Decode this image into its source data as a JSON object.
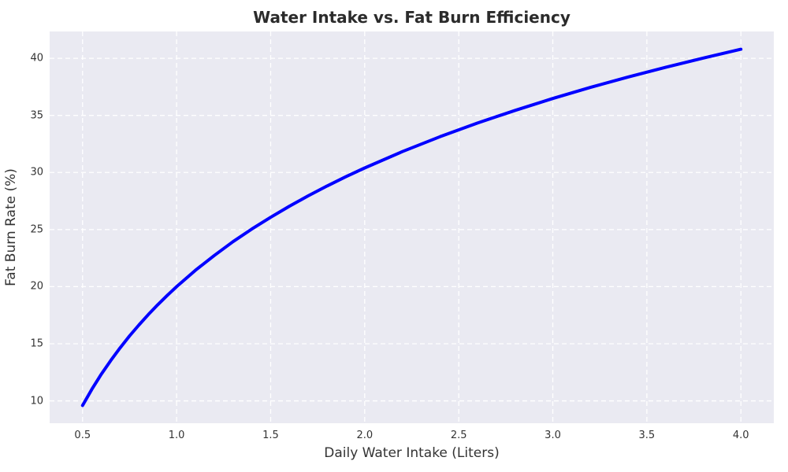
{
  "chart_data": {
    "type": "line",
    "title": "Water Intake vs. Fat Burn Efficiency",
    "xlabel": "Daily Water Intake (Liters)",
    "ylabel": "Fat Burn Rate (%)",
    "x": [
      0.5,
      0.55,
      0.6,
      0.65,
      0.7,
      0.75,
      0.8,
      0.85,
      0.9,
      0.95,
      1.0,
      1.1,
      1.2,
      1.3,
      1.4,
      1.5,
      1.6,
      1.7,
      1.8,
      1.9,
      2.0,
      2.2,
      2.4,
      2.6,
      2.8,
      3.0,
      3.2,
      3.4,
      3.6,
      3.8,
      4.0
    ],
    "y": [
      9.6,
      11.03,
      12.34,
      13.54,
      14.65,
      15.69,
      16.65,
      17.56,
      18.42,
      19.23,
      20.0,
      21.43,
      22.73,
      23.94,
      25.05,
      26.08,
      27.05,
      27.96,
      28.82,
      29.63,
      30.4,
      31.83,
      33.13,
      34.33,
      35.44,
      36.48,
      37.45,
      38.36,
      39.21,
      40.02,
      40.79
    ],
    "relationship": "y = 20 + 15*ln(x)",
    "xticks": [
      0.5,
      1.0,
      1.5,
      2.0,
      2.5,
      3.0,
      3.5,
      4.0
    ],
    "xtick_labels": [
      "0.5",
      "1.0",
      "1.5",
      "2.0",
      "2.5",
      "3.0",
      "3.5",
      "4.0"
    ],
    "yticks": [
      10,
      15,
      20,
      25,
      30,
      35,
      40
    ],
    "ytick_labels": [
      "10",
      "15",
      "20",
      "25",
      "30",
      "35",
      "40"
    ],
    "xlim": [
      0.325,
      4.175
    ],
    "ylim": [
      8.04,
      42.35
    ],
    "grid": "on",
    "grid_style": "dashed-white",
    "legend": "none",
    "line_color": "#0000ff",
    "line_width": 4,
    "plot_bg_color": "#eaeaf2",
    "figure_bg_color": "#ffffff",
    "text_color": "#333333",
    "title_color": "#2b2b2b"
  }
}
